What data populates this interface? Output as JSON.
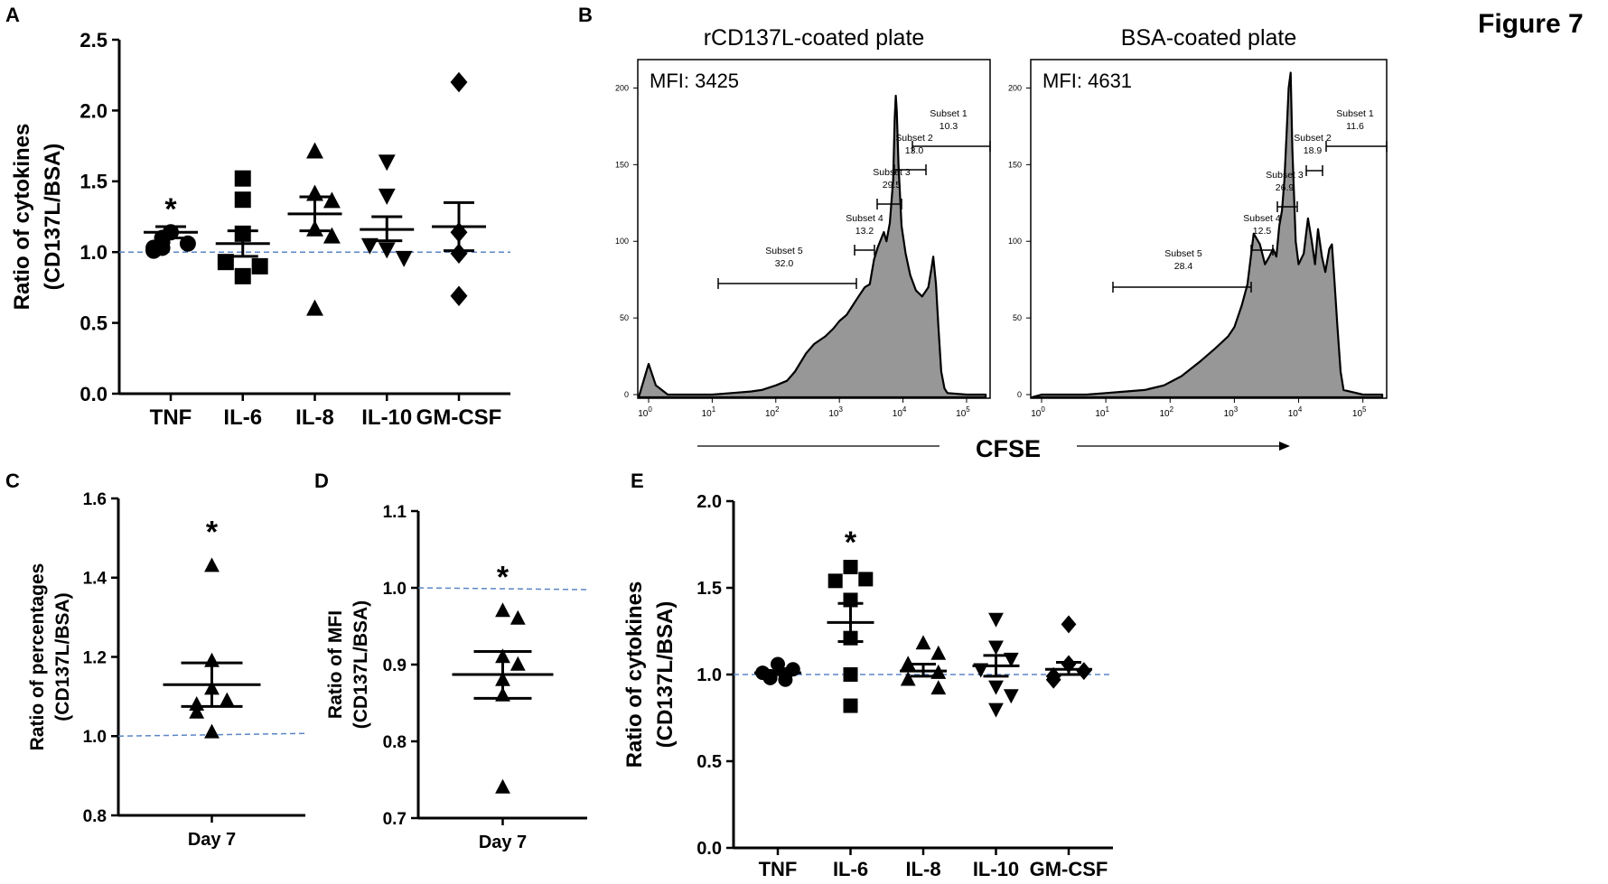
{
  "figure_title": "Figure 7",
  "panel_labels": {
    "a": "A",
    "b": "B",
    "c": "C",
    "d": "D",
    "e": "E"
  },
  "chart_data": [
    {
      "id": "A",
      "type": "scatter",
      "ylabel": "Ratio of cytokines",
      "ylabel2": "(CD137L/BSA)",
      "ylim": [
        0,
        2.5
      ],
      "yticks": [
        0.0,
        0.5,
        1.0,
        1.5,
        2.0,
        2.5
      ],
      "ytick_labels": [
        "0.0",
        "0.5",
        "1.0",
        "1.5",
        "2.0",
        "2.5"
      ],
      "reference_line": 1.0,
      "categories": [
        "TNF",
        "IL-6",
        "IL-8",
        "IL-10",
        "GM-CSF"
      ],
      "markers": [
        "circle",
        "square",
        "triangle-up",
        "triangle-down",
        "diamond"
      ],
      "values": [
        [
          1.14,
          1.06,
          1.03,
          1.01,
          1.07,
          1.03,
          1.1
        ],
        [
          1.52,
          1.37,
          0.83,
          0.9,
          1.13,
          0.93
        ],
        [
          1.71,
          1.41,
          1.36,
          1.16,
          1.11,
          0.6
        ],
        [
          1.64,
          1.4,
          1.02,
          0.96,
          1.05
        ],
        [
          2.2,
          1.14,
          0.99,
          0.69
        ]
      ],
      "means": [
        1.14,
        1.06,
        1.27,
        1.16,
        1.18
      ],
      "sem_low": [
        1.1,
        0.97,
        1.15,
        1.08,
        1.01
      ],
      "sem_high": [
        1.18,
        1.15,
        1.39,
        1.25,
        1.35
      ],
      "significance": [
        "*",
        "",
        "",
        "",
        ""
      ]
    },
    {
      "id": "B",
      "type": "area",
      "xlabel": "CFSE",
      "xticks": [
        1,
        10,
        100,
        1000,
        10000,
        100000
      ],
      "xtick_base": "10",
      "xtick_exponents": [
        "0",
        "1",
        "2",
        "3",
        "4",
        "5"
      ],
      "yticks": [
        0,
        50,
        100,
        150,
        200
      ],
      "ytick_labels": [
        "0",
        "50",
        "100",
        "150",
        "200"
      ],
      "histograms": [
        {
          "title": "rCD137L-coated plate",
          "mfi_label": "MFI: 3425",
          "x": [
            1,
            1.3,
            2,
            5,
            10,
            20,
            40,
            60,
            100,
            150,
            200,
            300,
            400,
            600,
            800,
            1000,
            1300,
            1500,
            2000,
            2500,
            3000,
            3500,
            4000,
            5000,
            5500,
            6200,
            7000,
            7400,
            7700,
            8000,
            8500,
            9500,
            11000,
            13000,
            16000,
            20000,
            25000,
            28000,
            30000,
            33000,
            36000,
            40000,
            45000,
            50000,
            100000,
            200000
          ],
          "y": [
            20,
            6,
            0,
            0,
            0,
            1,
            2,
            3,
            6,
            9,
            15,
            27,
            33,
            38,
            43,
            48,
            52,
            56,
            64,
            70,
            72,
            88,
            96,
            106,
            100,
            112,
            140,
            180,
            195,
            185,
            150,
            110,
            92,
            78,
            68,
            64,
            70,
            82,
            90,
            72,
            45,
            15,
            4,
            1,
            0,
            0
          ],
          "gates": [
            {
              "name": "Subset 1",
              "value": "10.3"
            },
            {
              "name": "Subset 2",
              "value": "13.0"
            },
            {
              "name": "Subset 3",
              "value": "29.5"
            },
            {
              "name": "Subset 4",
              "value": "13.2"
            },
            {
              "name": "Subset 5",
              "value": "32.0"
            }
          ]
        },
        {
          "title": "BSA-coated plate",
          "mfi_label": "MFI: 4631",
          "x": [
            1,
            2,
            5,
            10,
            20,
            40,
            80,
            150,
            300,
            500,
            800,
            1000,
            1300,
            1600,
            2000,
            2500,
            3000,
            3500,
            4000,
            4500,
            5000,
            5500,
            6000,
            6500,
            7000,
            7500,
            8000,
            9000,
            10000,
            12000,
            14000,
            16000,
            18000,
            20000,
            23000,
            26000,
            30000,
            33000,
            36000,
            40000,
            45000,
            50000,
            100000,
            200000
          ],
          "y": [
            0,
            0,
            0,
            1,
            2,
            3,
            6,
            12,
            22,
            30,
            38,
            44,
            58,
            72,
            105,
            98,
            85,
            90,
            95,
            90,
            110,
            120,
            140,
            170,
            200,
            210,
            160,
            100,
            85,
            92,
            115,
            100,
            85,
            108,
            90,
            80,
            95,
            98,
            75,
            45,
            15,
            3,
            0,
            0
          ],
          "gates": [
            {
              "name": "Subset 1",
              "value": "11.6"
            },
            {
              "name": "Subset 2",
              "value": "18.9"
            },
            {
              "name": "Subset 3",
              "value": "26.9"
            },
            {
              "name": "Subset 4",
              "value": "12.5"
            },
            {
              "name": "Subset 5",
              "value": "28.4"
            }
          ]
        }
      ]
    },
    {
      "id": "C",
      "type": "scatter",
      "ylabel": "Ratio of percentages",
      "ylabel2": "(CD137L/BSA)",
      "ylim": [
        0.8,
        1.6
      ],
      "yticks": [
        0.8,
        1.0,
        1.2,
        1.4,
        1.6
      ],
      "ytick_labels": [
        "0.8",
        "1.0",
        "1.2",
        "1.4",
        "1.6"
      ],
      "reference_line": 1.0,
      "categories": [
        "Day 7"
      ],
      "markers": [
        "triangle-up"
      ],
      "values": [
        [
          1.43,
          1.19,
          1.12,
          1.09,
          1.08,
          1.06,
          1.01
        ]
      ],
      "means": [
        1.13
      ],
      "sem_low": [
        1.075
      ],
      "sem_high": [
        1.185
      ],
      "significance": [
        "*"
      ]
    },
    {
      "id": "D",
      "type": "scatter",
      "ylabel": "Ratio of MFI",
      "ylabel2": "(CD137L/BSA)",
      "ylim": [
        0.7,
        1.1
      ],
      "yticks": [
        0.7,
        0.8,
        0.9,
        1.0,
        1.1
      ],
      "ytick_labels": [
        "0.7",
        "0.8",
        "0.9",
        "1.0",
        "1.1"
      ],
      "reference_line": 1.0,
      "categories": [
        "Day 7"
      ],
      "markers": [
        "triangle-up"
      ],
      "values": [
        [
          0.97,
          0.96,
          0.91,
          0.9,
          0.88,
          0.86,
          0.74
        ]
      ],
      "means": [
        0.887
      ],
      "sem_low": [
        0.856
      ],
      "sem_high": [
        0.917
      ],
      "significance": [
        "*"
      ]
    },
    {
      "id": "E",
      "type": "scatter",
      "ylabel": "Ratio of cytokines",
      "ylabel2": "(CD137L/BSA)",
      "ylim": [
        0,
        2.0
      ],
      "yticks": [
        0.0,
        0.5,
        1.0,
        1.5,
        2.0
      ],
      "ytick_labels": [
        "0.0",
        "0.5",
        "1.0",
        "1.5",
        "2.0"
      ],
      "reference_line": 1.0,
      "categories": [
        "TNF",
        "IL-6",
        "IL-8",
        "IL-10",
        "GM-CSF"
      ],
      "markers": [
        "circle",
        "square",
        "triangle-up",
        "triangle-down",
        "diamond"
      ],
      "values": [
        [
          1.06,
          1.03,
          1.01,
          1.0,
          0.99,
          0.98,
          0.97
        ],
        [
          1.62,
          1.55,
          1.54,
          1.43,
          1.21,
          1.0,
          0.82
        ],
        [
          1.18,
          1.12,
          1.06,
          1.01,
          0.97,
          0.92
        ],
        [
          1.32,
          1.16,
          1.09,
          1.03,
          0.93,
          0.88,
          0.8
        ],
        [
          1.29,
          1.06,
          1.02,
          0.99,
          0.97
        ]
      ],
      "means": [
        1.01,
        1.3,
        1.02,
        1.05,
        1.03
      ],
      "sem_low": [
        1.0,
        1.19,
        0.99,
        0.99,
        1.0
      ],
      "sem_high": [
        1.02,
        1.41,
        1.06,
        1.11,
        1.07
      ],
      "significance": [
        "",
        "*",
        "",
        "",
        ""
      ]
    }
  ]
}
